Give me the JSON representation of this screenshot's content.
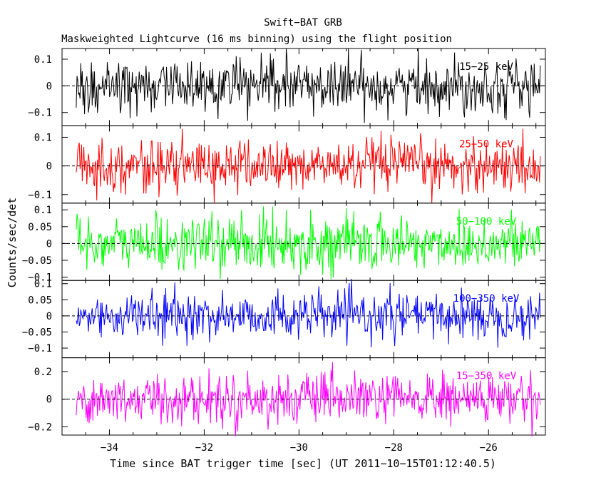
{
  "title": "Swift−BAT GRB",
  "subtitle": "Maskweighted Lightcurve (16 ms binning) using the flight position",
  "xlabel": "Time since BAT trigger time [sec] (UT 2011−10−15T01:12:40.5)",
  "ylabel": "Counts/sec/det",
  "chart_data": [
    {
      "type": "line",
      "name": "15−25 keV",
      "color": "#000000",
      "xlim": [
        -35.0,
        -24.8
      ],
      "ylim": [
        -0.15,
        0.14
      ],
      "yticks": [
        -0.1,
        0,
        0.1
      ],
      "ytick_labels": [
        "−0.1",
        "0",
        "0.1"
      ],
      "x_range": [
        -34.7,
        -24.9
      ],
      "bin": 0.016,
      "noise_sigma": 0.05
    },
    {
      "type": "line",
      "name": "25−50 keV",
      "color": "#ff0000",
      "xlim": [
        -35.0,
        -24.8
      ],
      "ylim": [
        -0.13,
        0.14
      ],
      "yticks": [
        -0.1,
        0,
        0.1
      ],
      "ytick_labels": [
        "−0.1",
        "0",
        "0.1"
      ],
      "x_range": [
        -34.7,
        -24.9
      ],
      "bin": 0.016,
      "noise_sigma": 0.045
    },
    {
      "type": "line",
      "name": "50−100 keV",
      "color": "#00ff00",
      "xlim": [
        -35.0,
        -24.8
      ],
      "ylim": [
        -0.11,
        0.12
      ],
      "yticks": [
        -0.1,
        -0.05,
        0,
        0.05,
        0.1
      ],
      "ytick_labels": [
        "−0.1",
        "−0.05",
        "0",
        "0.05",
        "0.1"
      ],
      "x_range": [
        -34.7,
        -24.9
      ],
      "bin": 0.016,
      "noise_sigma": 0.04
    },
    {
      "type": "line",
      "name": "100−350 keV",
      "color": "#0000ff",
      "xlim": [
        -35.0,
        -24.8
      ],
      "ylim": [
        -0.13,
        0.11
      ],
      "yticks": [
        -0.1,
        -0.05,
        0,
        0.05,
        0.1
      ],
      "ytick_labels": [
        "−0.1",
        "−0.05",
        "0",
        "0.05",
        "0.1"
      ],
      "x_range": [
        -34.7,
        -24.9
      ],
      "bin": 0.016,
      "noise_sigma": 0.035
    },
    {
      "type": "line",
      "name": "15−350 keV",
      "color": "#ff00ff",
      "xlim": [
        -35.0,
        -24.8
      ],
      "ylim": [
        -0.26,
        0.3
      ],
      "yticks": [
        -0.2,
        0,
        0.2
      ],
      "ytick_labels": [
        "−0.2",
        "0",
        "0.2"
      ],
      "x_range": [
        -34.7,
        -24.9
      ],
      "bin": 0.016,
      "noise_sigma": 0.09
    }
  ],
  "x_axis": {
    "ticks": [
      -34,
      -32,
      -30,
      -28,
      -26
    ],
    "tick_labels": [
      "−34",
      "−32",
      "−30",
      "−28",
      "−26"
    ],
    "minor_step": 0.5
  },
  "grid": false,
  "zero_line": true
}
